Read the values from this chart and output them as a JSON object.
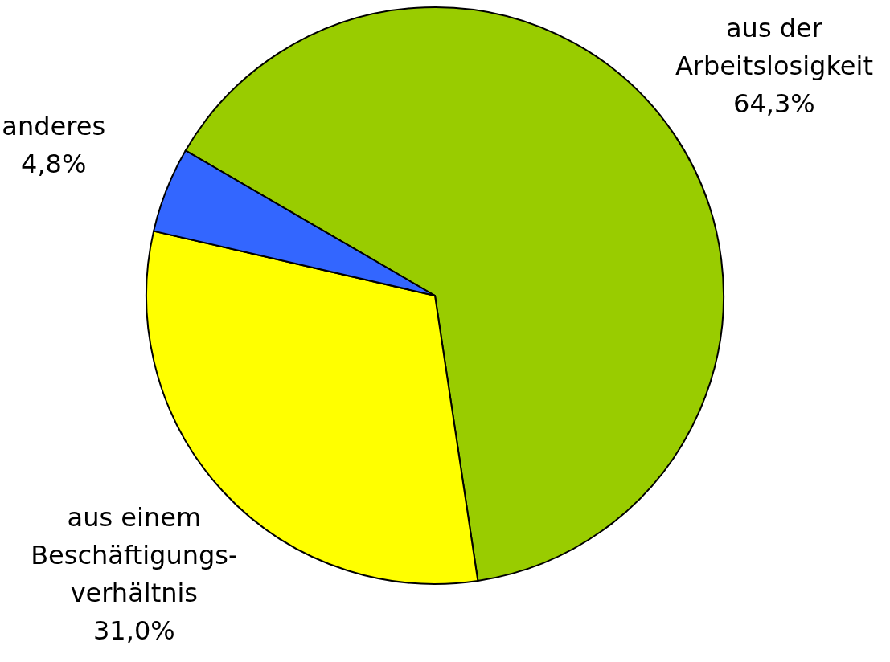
{
  "chart_data": {
    "type": "pie",
    "categories": [
      "aus der\nArbeitslosigkeit",
      "aus einem\nBeschäftigungs-\nverhältnis",
      "anderes"
    ],
    "values": [
      64.3,
      31.0,
      4.8
    ],
    "colors": [
      "#99cc00",
      "#ffff00",
      "#3366ff"
    ],
    "value_labels": [
      "64,3%",
      "31,0%",
      "4,8%"
    ]
  }
}
